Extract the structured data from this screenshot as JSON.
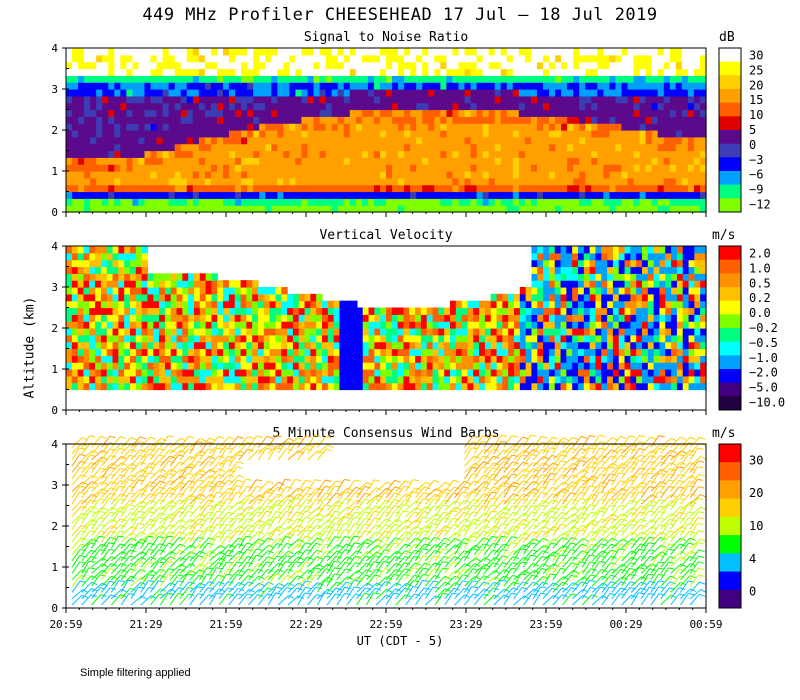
{
  "title": "449 MHz Profiler CHEESEHEAD 17 Jul – 18 Jul 2019",
  "footnote": "Simple filtering applied",
  "colors": {
    "axis": "#000000",
    "background": "#ffffff"
  },
  "chart_data": [
    {
      "type": "heatmap",
      "title": "Signal to Noise Ratio",
      "ylabel": "Altitude (km)",
      "xlabel": "UT  (CDT - 5)",
      "x_ticks": [
        "20:59",
        "21:29",
        "21:59",
        "22:29",
        "22:59",
        "23:29",
        "23:59",
        "00:29",
        "00:59"
      ],
      "y_ticks": [
        0,
        1,
        2,
        3,
        4
      ],
      "ylim": [
        0,
        4
      ],
      "colorbar_unit": "dB",
      "colorbar_labels": [
        "30",
        "25",
        "20",
        "15",
        "10",
        "5",
        "0",
        "−3",
        "−6",
        "−9",
        "−12"
      ],
      "colorbar_colors": [
        "#ffffff",
        "#ffff00",
        "#ffd000",
        "#ffa000",
        "#ff6000",
        "#e00000",
        "#5a0a8a",
        "#3c3cb4",
        "#0000ff",
        "#00a0ff",
        "#00ff80",
        "#80ff00"
      ]
    },
    {
      "type": "heatmap",
      "title": "Vertical Velocity",
      "x_ticks": [
        "20:59",
        "21:29",
        "21:59",
        "22:29",
        "22:59",
        "23:29",
        "23:59",
        "00:29",
        "00:59"
      ],
      "y_ticks": [
        0,
        1,
        2,
        3,
        4
      ],
      "ylim": [
        0,
        4
      ],
      "colorbar_unit": "m/s",
      "colorbar_labels": [
        "2.0",
        "1.0",
        "0.5",
        "0.2",
        "0.0",
        "−0.2",
        "−0.5",
        "−1.0",
        "−2.0",
        "−5.0",
        "−10.0"
      ],
      "colorbar_colors": [
        "#ff0000",
        "#ff6000",
        "#ff9000",
        "#ffc000",
        "#ffff00",
        "#80ff00",
        "#00ff80",
        "#00ffff",
        "#00a0ff",
        "#0000ff",
        "#400080",
        "#200040"
      ]
    },
    {
      "type": "barbs",
      "title": "5 Minute Consensus Wind Barbs",
      "x_ticks": [
        "20:59",
        "21:29",
        "21:59",
        "22:29",
        "22:59",
        "23:29",
        "23:59",
        "00:29",
        "00:59"
      ],
      "y_ticks": [
        0,
        1,
        2,
        3,
        4
      ],
      "ylim": [
        0,
        4
      ],
      "colorbar_unit": "m/s",
      "colorbar_labels": [
        "30",
        "20",
        "10",
        "4",
        "0"
      ],
      "colorbar_colors": [
        "#ff0000",
        "#ff6000",
        "#ffa000",
        "#ffd000",
        "#c0ff00",
        "#00ff00",
        "#00c0ff",
        "#0000ff",
        "#400080"
      ]
    }
  ]
}
